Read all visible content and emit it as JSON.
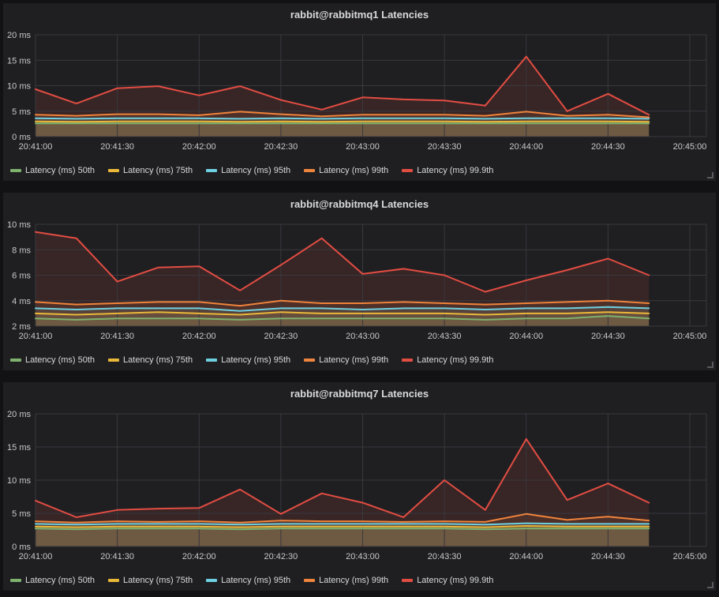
{
  "page": {
    "background": "#121214",
    "panel_background": "#1f1f22",
    "grid_color": "#39393e",
    "axis_text_color": "#c8c8cc",
    "title_text_color": "#d8d9da",
    "fill_opacity": 0.13
  },
  "chart_data": [
    {
      "type": "area",
      "title": "rabbit@rabbitmq1 Latencies",
      "x": [
        "20:41:00",
        "20:41:15",
        "20:41:30",
        "20:41:45",
        "20:42:00",
        "20:42:15",
        "20:42:30",
        "20:42:45",
        "20:43:00",
        "20:43:15",
        "20:43:30",
        "20:43:45",
        "20:44:00",
        "20:44:15",
        "20:44:30",
        "20:44:45"
      ],
      "x_axis_ticks": [
        "20:41:00",
        "20:41:30",
        "20:42:00",
        "20:42:30",
        "20:43:00",
        "20:43:30",
        "20:44:00",
        "20:44:30",
        "20:45:00"
      ],
      "x_range_seconds": 240,
      "point_interval_seconds": 15,
      "ylim": [
        0,
        20
      ],
      "yticks": [
        0,
        5,
        10,
        15,
        20
      ],
      "ytick_labels": [
        "0 ms",
        "5 ms",
        "10 ms",
        "15 ms",
        "20 ms"
      ],
      "grid": true,
      "legend_position": "bottom",
      "series": [
        {
          "name": "Latency (ms) 50th",
          "color": "#7EB26D",
          "values": [
            2.6,
            2.6,
            2.6,
            2.6,
            2.6,
            2.6,
            2.6,
            2.6,
            2.6,
            2.6,
            2.6,
            2.6,
            2.6,
            2.6,
            2.6,
            2.6
          ]
        },
        {
          "name": "Latency (ms) 75th",
          "color": "#EAB839",
          "values": [
            3.0,
            2.9,
            3.0,
            3.0,
            3.0,
            2.9,
            3.0,
            2.9,
            3.0,
            3.0,
            3.0,
            2.9,
            3.0,
            3.0,
            3.0,
            2.9
          ]
        },
        {
          "name": "Latency (ms) 95th",
          "color": "#6ED0E0",
          "values": [
            3.6,
            3.5,
            3.6,
            3.6,
            3.6,
            3.5,
            3.6,
            3.5,
            3.6,
            3.6,
            3.6,
            3.5,
            3.6,
            3.6,
            3.6,
            3.5
          ]
        },
        {
          "name": "Latency (ms) 99th",
          "color": "#EF843C",
          "values": [
            4.3,
            4.1,
            4.4,
            4.4,
            4.2,
            4.9,
            4.4,
            4.0,
            4.3,
            4.3,
            4.3,
            4.1,
            4.9,
            4.1,
            4.3,
            3.8
          ]
        },
        {
          "name": "Latency (ms) 99.9th",
          "color": "#E24D42",
          "values": [
            9.3,
            6.5,
            9.5,
            9.9,
            8.1,
            9.9,
            7.2,
            5.3,
            7.7,
            7.3,
            7.1,
            6.1,
            15.7,
            5.0,
            8.4,
            4.3
          ]
        }
      ]
    },
    {
      "type": "area",
      "title": "rabbit@rabbitmq4 Latencies",
      "x": [
        "20:41:00",
        "20:41:15",
        "20:41:30",
        "20:41:45",
        "20:42:00",
        "20:42:15",
        "20:42:30",
        "20:42:45",
        "20:43:00",
        "20:43:15",
        "20:43:30",
        "20:43:45",
        "20:44:00",
        "20:44:15",
        "20:44:30",
        "20:44:45"
      ],
      "x_axis_ticks": [
        "20:41:00",
        "20:41:30",
        "20:42:00",
        "20:42:30",
        "20:43:00",
        "20:43:30",
        "20:44:00",
        "20:44:30",
        "20:45:00"
      ],
      "x_range_seconds": 240,
      "point_interval_seconds": 15,
      "ylim": [
        2,
        10
      ],
      "yticks": [
        2,
        4,
        6,
        8,
        10
      ],
      "ytick_labels": [
        "2 ms",
        "4 ms",
        "6 ms",
        "8 ms",
        "10 ms"
      ],
      "grid": true,
      "legend_position": "bottom",
      "series": [
        {
          "name": "Latency (ms) 50th",
          "color": "#7EB26D",
          "values": [
            2.6,
            2.5,
            2.6,
            2.6,
            2.6,
            2.5,
            2.6,
            2.6,
            2.6,
            2.6,
            2.6,
            2.5,
            2.6,
            2.6,
            2.8,
            2.6
          ]
        },
        {
          "name": "Latency (ms) 75th",
          "color": "#EAB839",
          "values": [
            3.0,
            2.9,
            3.0,
            3.1,
            3.0,
            2.9,
            3.1,
            3.0,
            3.0,
            3.0,
            3.0,
            2.9,
            3.0,
            3.0,
            3.1,
            3.0
          ]
        },
        {
          "name": "Latency (ms) 95th",
          "color": "#6ED0E0",
          "values": [
            3.4,
            3.3,
            3.4,
            3.4,
            3.4,
            3.2,
            3.4,
            3.4,
            3.3,
            3.4,
            3.4,
            3.3,
            3.4,
            3.4,
            3.5,
            3.4
          ]
        },
        {
          "name": "Latency (ms) 99th",
          "color": "#EF843C",
          "values": [
            3.9,
            3.7,
            3.8,
            3.9,
            3.9,
            3.6,
            4.0,
            3.8,
            3.8,
            3.9,
            3.8,
            3.7,
            3.8,
            3.9,
            4.0,
            3.8
          ]
        },
        {
          "name": "Latency (ms) 99.9th",
          "color": "#E24D42",
          "values": [
            9.4,
            8.9,
            5.5,
            6.6,
            6.7,
            4.8,
            6.8,
            8.9,
            6.1,
            6.5,
            6.0,
            4.7,
            5.6,
            6.4,
            7.3,
            6.0
          ]
        }
      ]
    },
    {
      "type": "area",
      "title": "rabbit@rabbitmq7 Latencies",
      "x": [
        "20:41:00",
        "20:41:15",
        "20:41:30",
        "20:41:45",
        "20:42:00",
        "20:42:15",
        "20:42:30",
        "20:42:45",
        "20:43:00",
        "20:43:15",
        "20:43:30",
        "20:43:45",
        "20:44:00",
        "20:44:15",
        "20:44:30",
        "20:44:45"
      ],
      "x_axis_ticks": [
        "20:41:00",
        "20:41:30",
        "20:42:00",
        "20:42:30",
        "20:43:00",
        "20:43:30",
        "20:44:00",
        "20:44:30",
        "20:45:00"
      ],
      "x_range_seconds": 240,
      "point_interval_seconds": 15,
      "ylim": [
        0,
        20
      ],
      "yticks": [
        0,
        5,
        10,
        15,
        20
      ],
      "ytick_labels": [
        "0 ms",
        "5 ms",
        "10 ms",
        "15 ms",
        "20 ms"
      ],
      "grid": true,
      "legend_position": "bottom",
      "series": [
        {
          "name": "Latency (ms) 50th",
          "color": "#7EB26D",
          "values": [
            2.7,
            2.6,
            2.7,
            2.7,
            2.7,
            2.6,
            2.7,
            2.7,
            2.7,
            2.7,
            2.7,
            2.6,
            2.7,
            2.7,
            2.7,
            2.7
          ]
        },
        {
          "name": "Latency (ms) 75th",
          "color": "#EAB839",
          "values": [
            3.0,
            2.9,
            3.0,
            3.0,
            3.0,
            2.9,
            3.0,
            3.0,
            3.0,
            3.0,
            3.0,
            2.9,
            3.1,
            3.0,
            3.0,
            3.0
          ]
        },
        {
          "name": "Latency (ms) 95th",
          "color": "#6ED0E0",
          "values": [
            3.4,
            3.3,
            3.4,
            3.4,
            3.4,
            3.3,
            3.4,
            3.4,
            3.4,
            3.4,
            3.4,
            3.3,
            3.5,
            3.4,
            3.4,
            3.4
          ]
        },
        {
          "name": "Latency (ms) 99th",
          "color": "#EF843C",
          "values": [
            3.8,
            3.6,
            3.8,
            3.7,
            3.8,
            3.6,
            3.9,
            3.8,
            3.8,
            3.7,
            3.8,
            3.7,
            4.9,
            4.0,
            4.5,
            3.9
          ]
        },
        {
          "name": "Latency (ms) 99.9th",
          "color": "#E24D42",
          "values": [
            6.9,
            4.4,
            5.5,
            5.7,
            5.8,
            8.6,
            4.9,
            8.0,
            6.6,
            4.4,
            10.0,
            5.5,
            16.2,
            7.0,
            9.5,
            6.6
          ]
        }
      ]
    }
  ]
}
